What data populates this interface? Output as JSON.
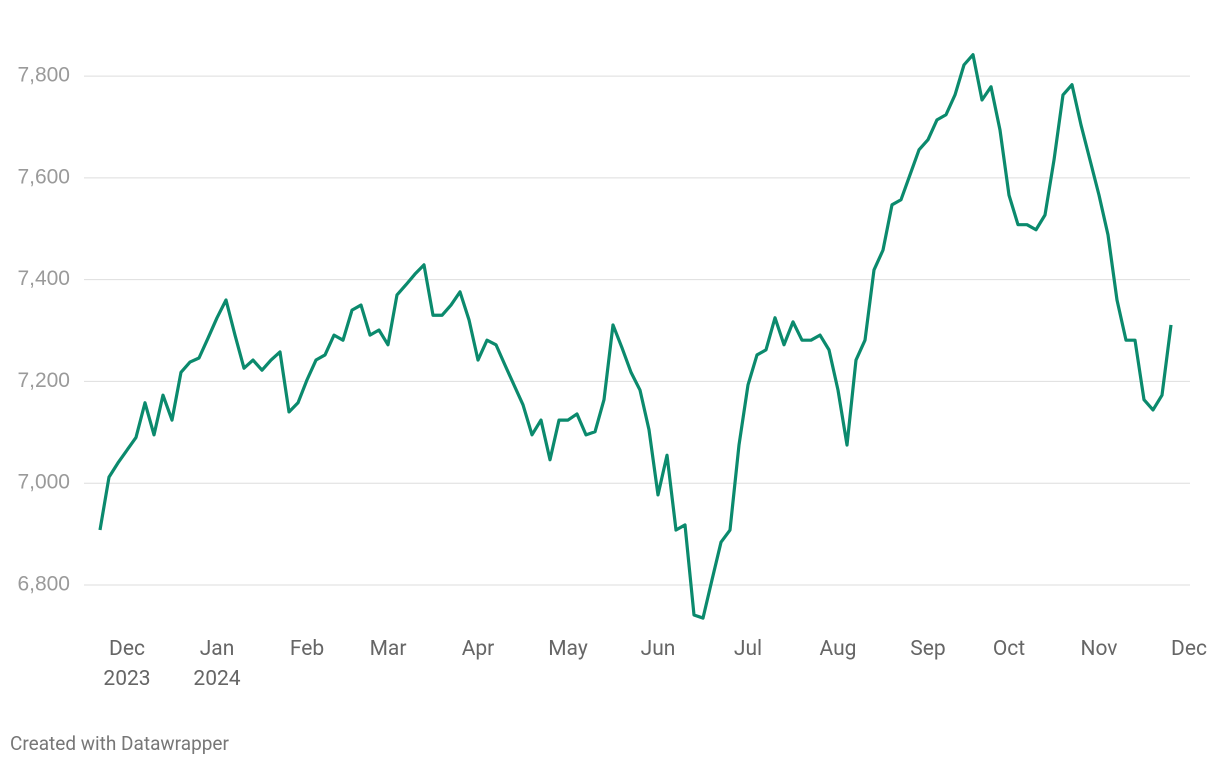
{
  "chart_data": {
    "type": "line",
    "categories": [
      null,
      null,
      null,
      "Dec\n2023",
      null,
      null,
      null,
      null,
      null,
      null,
      null,
      null,
      null,
      "Jan\n2024",
      null,
      null,
      null,
      null,
      null,
      null,
      null,
      null,
      null,
      "Feb",
      null,
      null,
      null,
      null,
      null,
      null,
      null,
      null,
      "Mar",
      null,
      null,
      null,
      null,
      null,
      null,
      null,
      null,
      null,
      "Apr",
      null,
      null,
      null,
      null,
      null,
      null,
      null,
      null,
      null,
      "May",
      null,
      null,
      null,
      null,
      null,
      null,
      null,
      null,
      null,
      "Jun",
      null,
      null,
      null,
      null,
      null,
      null,
      null,
      null,
      null,
      "Jul",
      null,
      null,
      null,
      null,
      null,
      null,
      null,
      null,
      null,
      "Aug",
      null,
      null,
      null,
      null,
      null,
      null,
      null,
      null,
      null,
      "Sep",
      null,
      null,
      null,
      null,
      null,
      null,
      null,
      null,
      "Oct",
      null,
      null,
      null,
      null,
      null,
      null,
      null,
      null,
      null,
      "Nov",
      null,
      null,
      null,
      null,
      null,
      null,
      null,
      null,
      null,
      "Dec"
    ],
    "series": [
      {
        "color": "#0b8a6d",
        "values": [
          6908,
          7012,
          7040,
          7065,
          7090,
          7158,
          7095,
          7173,
          7124,
          7218,
          7238,
          7246,
          7285,
          7325,
          7360,
          7291,
          7226,
          7242,
          7222,
          7242,
          7258,
          7140,
          7158,
          7203,
          7242,
          7252,
          7291,
          7281,
          7340,
          7350,
          7291,
          7301,
          7272,
          7370,
          7390,
          7411,
          7429,
          7330,
          7330,
          7350,
          7376,
          7321,
          7242,
          7281,
          7272,
          7232,
          7193,
          7154,
          7095,
          7124,
          7046,
          7124,
          7124,
          7136,
          7095,
          7101,
          7164,
          7311,
          7266,
          7218,
          7183,
          7105,
          6977,
          7055,
          6908,
          6918,
          6741,
          6735,
          6810,
          6884,
          6908,
          7075,
          7193,
          7252,
          7262,
          7325,
          7272,
          7317,
          7281,
          7281,
          7291,
          7262,
          7183,
          7075,
          7242,
          7281,
          7419,
          7458,
          7547,
          7557,
          7606,
          7655,
          7675,
          7714,
          7724,
          7763,
          7822,
          7842,
          7753,
          7779,
          7694,
          7566,
          7508,
          7508,
          7498,
          7527,
          7635,
          7763,
          7783,
          7704,
          7635,
          7566,
          7488,
          7360,
          7281,
          7281,
          7164,
          7144,
          7173,
          7311,
          null,
          null
        ]
      }
    ],
    "ylim": [
      6730,
      7920
    ],
    "yticks": [
      {
        "value": 6800,
        "label": "6,800"
      },
      {
        "value": 7000,
        "label": "7,000"
      },
      {
        "value": 7200,
        "label": "7,200"
      },
      {
        "value": 7400,
        "label": "7,400"
      },
      {
        "value": 7600,
        "label": "7,600"
      },
      {
        "value": 7800,
        "label": "7,800"
      }
    ],
    "grid": true
  },
  "credit": "Created with Datawrapper"
}
